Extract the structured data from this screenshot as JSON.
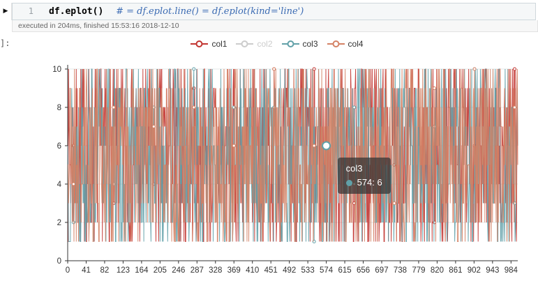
{
  "notebook": {
    "cell": {
      "run_icon": "▶",
      "line_number": "1",
      "code_main": "df.eplot()",
      "code_comment": "# = df.eplot.line() = df.eplot(kind='line')"
    },
    "exec_status": "executed in 204ms, finished 15:53:16 2018-12-10",
    "output_prompt": "]:"
  },
  "tooltip": {
    "series_label": "col3",
    "value_label": "574: 6",
    "marker_color": "#61a0a8"
  },
  "colors": {
    "axis": "#333333",
    "grid": "#e4e8e8",
    "deselected_legend": "#cccccc",
    "tooltip_bg": "rgba(50,50,50,0.72)"
  },
  "chart_data": {
    "type": "line",
    "title": "",
    "xlabel": "",
    "ylabel": "",
    "x_ticks": [
      0,
      41,
      82,
      123,
      164,
      205,
      246,
      287,
      328,
      369,
      410,
      451,
      492,
      533,
      574,
      615,
      656,
      697,
      738,
      779,
      820,
      861,
      902,
      943,
      984
    ],
    "x_max": 999,
    "num_points": 1000,
    "ylim": [
      0,
      10
    ],
    "y_ticks": [
      0,
      2,
      4,
      6,
      8,
      10
    ],
    "value_range": [
      1,
      10
    ],
    "values_description": "each visible series is ~1000 random integer values between 1 and 10 (dense noise; individual values not readable at this scale, synthesized with seeded PRNG)",
    "grid": true,
    "legend_position": "top-center",
    "series": [
      {
        "name": "col1",
        "color": "#c23531",
        "selected": true,
        "seed": 7
      },
      {
        "name": "col2",
        "color": "#2f4554",
        "selected": false,
        "seed": 11
      },
      {
        "name": "col3",
        "color": "#61a0a8",
        "selected": true,
        "seed": 13
      },
      {
        "name": "col4",
        "color": "#d48265",
        "selected": true,
        "seed": 21
      }
    ],
    "highlight": {
      "series": "col3",
      "x": 574,
      "y": 6
    }
  }
}
